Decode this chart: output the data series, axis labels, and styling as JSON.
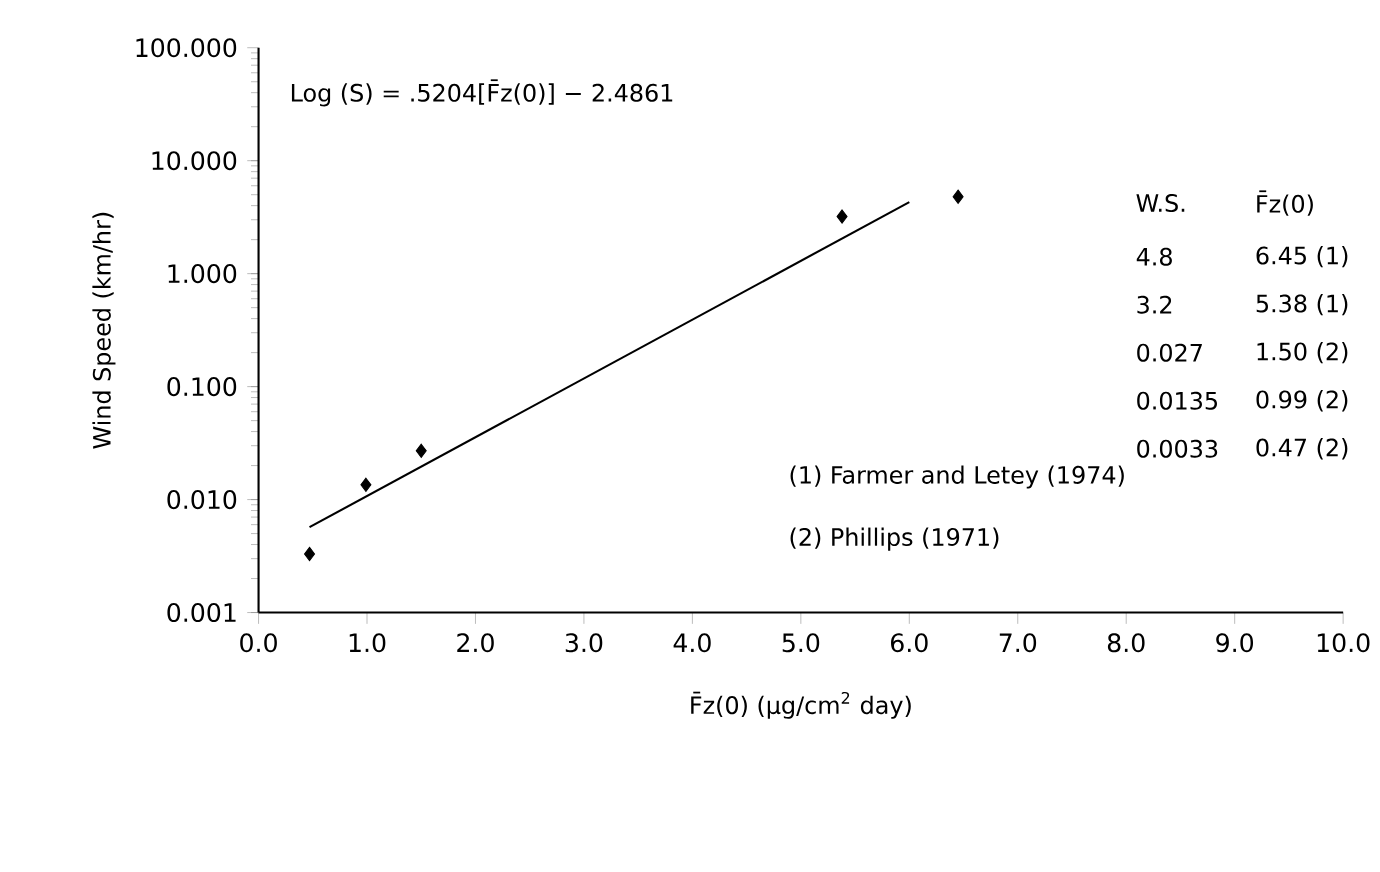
{
  "chart_data": {
    "type": "scatter",
    "xlabel": "F̄z(0)  (μg/cm$^{2}$ day)",
    "ylabel": "Wind Speed  (km/hr)",
    "log": "y",
    "marker": "diamond",
    "xlim": [
      0,
      10
    ],
    "ylim": [
      0.001,
      100
    ],
    "xticks": [
      {
        "value": 0,
        "label": "0.0"
      },
      {
        "value": 1,
        "label": "1.0"
      },
      {
        "value": 2,
        "label": "2.0"
      },
      {
        "value": 3,
        "label": "3.0"
      },
      {
        "value": 4,
        "label": "4.0"
      },
      {
        "value": 5,
        "label": "5.0"
      },
      {
        "value": 6,
        "label": "6.0"
      },
      {
        "value": 7,
        "label": "7.0"
      },
      {
        "value": 8,
        "label": "8.0"
      },
      {
        "value": 9,
        "label": "9.0"
      },
      {
        "value": 10,
        "label": "10.0"
      }
    ],
    "yticks": [
      {
        "value": 0.001,
        "label": "0.001"
      },
      {
        "value": 0.01,
        "label": "0.010"
      },
      {
        "value": 0.1,
        "label": "0.100"
      },
      {
        "value": 1,
        "label": "1.000"
      },
      {
        "value": 10,
        "label": "10.000"
      },
      {
        "value": 100,
        "label": "100.000"
      }
    ],
    "series": [
      {
        "color": "#000000",
        "x": [
          0.47,
          0.99,
          1.5,
          5.38,
          6.45
        ],
        "values": [
          0.0033,
          0.0135,
          0.027,
          3.2,
          4.8
        ]
      },
      {
        "type": "line",
        "marker": "none",
        "color": "#000000",
        "x": [
          0.47,
          6.0
        ],
        "values": [
          0.0057,
          4.3
        ]
      }
    ],
    "annotations": [
      "Log (S) = .5204[F̄z(0)] − 2.4861",
      "W.S.",
      "F̄z(0)",
      "4.8",
      "6.45 (1)",
      "3.2",
      "5.38 (1)",
      "0.027",
      "1.50 (2)",
      "0.0135",
      "0.99 (2)",
      "0.0033",
      "0.47 (2)",
      "(1) Farmer and Letey (1974)",
      "(2) Phillips (1971)"
    ]
  }
}
